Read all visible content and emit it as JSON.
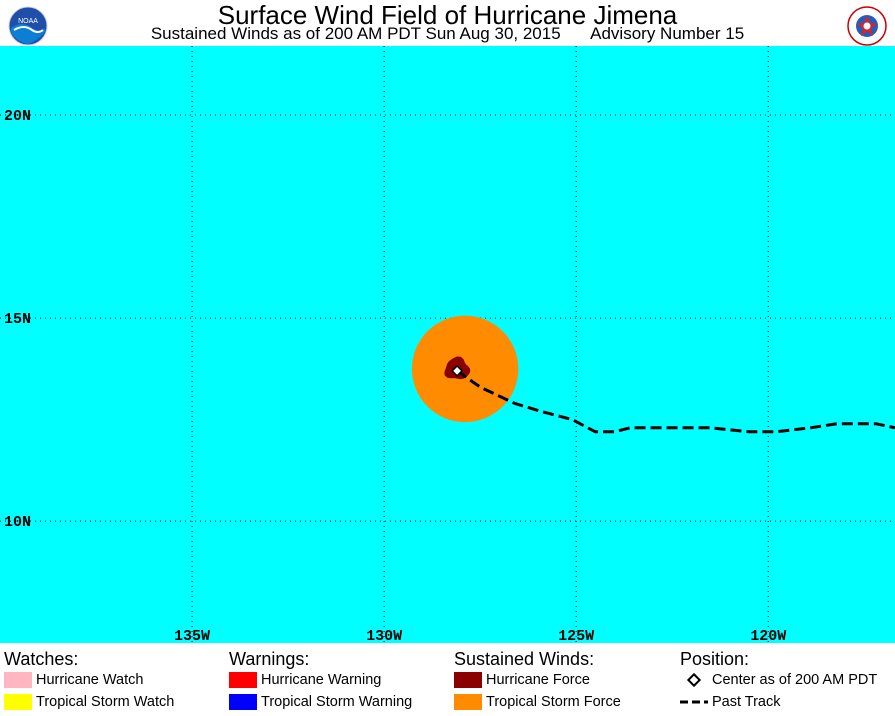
{
  "title": "Surface Wind Field of Hurricane Jimena",
  "subtitle_left": "Sustained Winds as of 200 AM PDT Sun Aug 30, 2015",
  "subtitle_right": "Advisory Number 15",
  "logos": {
    "left": "noaa-logo",
    "left_text": "NOAA",
    "right": "nws-logo",
    "right_text": "NATIONAL WEATHER SERVICE"
  },
  "map": {
    "background_color": "#00ffff",
    "lon_labels": [
      "135W",
      "130W",
      "125W",
      "120W"
    ],
    "lat_labels": [
      "20N",
      "15N",
      "10N"
    ],
    "lon_ticks": [
      -135,
      -130,
      -125,
      -120
    ],
    "lat_ticks": [
      20,
      15,
      10
    ],
    "extent": {
      "lon_min": -140,
      "lon_max": -116.7,
      "lat_min": 7,
      "lat_max": 21.7
    },
    "storm_center": {
      "lon": -128.1,
      "lat": 13.7
    },
    "tropical_storm_force_radius_deg": 1.65,
    "hurricane_force_radius_deg": 0.32,
    "past_track": [
      [
        -128.1,
        13.7
      ],
      [
        -127.5,
        13.3
      ],
      [
        -126.6,
        12.9
      ],
      [
        -125.9,
        12.7
      ],
      [
        -125.1,
        12.5
      ],
      [
        -124.5,
        12.2
      ],
      [
        -124.0,
        12.2
      ],
      [
        -123.6,
        12.3
      ],
      [
        -122.5,
        12.3
      ],
      [
        -121.5,
        12.3
      ],
      [
        -120.5,
        12.2
      ],
      [
        -119.8,
        12.2
      ],
      [
        -118.9,
        12.3
      ],
      [
        -118.2,
        12.4
      ],
      [
        -117.2,
        12.4
      ],
      [
        -116.7,
        12.3
      ]
    ]
  },
  "colors": {
    "hurricane_watch": "#ffb6c1",
    "tropical_storm_watch": "#ffff00",
    "hurricane_warning": "#ff0000",
    "tropical_storm_warning": "#0000ff",
    "hurricane_force": "#8b0000",
    "tropical_storm_force": "#ff8c00"
  },
  "legend": {
    "watches_heading": "Watches:",
    "hurricane_watch": "Hurricane Watch",
    "tropical_storm_watch": "Tropical Storm Watch",
    "warnings_heading": "Warnings:",
    "hurricane_warning": "Hurricane Warning",
    "tropical_storm_warning": "Tropical Storm Warning",
    "winds_heading": "Sustained Winds:",
    "hurricane_force": "Hurricane Force",
    "tropical_storm_force": "Tropical Storm Force",
    "position_heading": "Position:",
    "center": "Center as of 200 AM PDT",
    "past_track": "Past Track"
  }
}
